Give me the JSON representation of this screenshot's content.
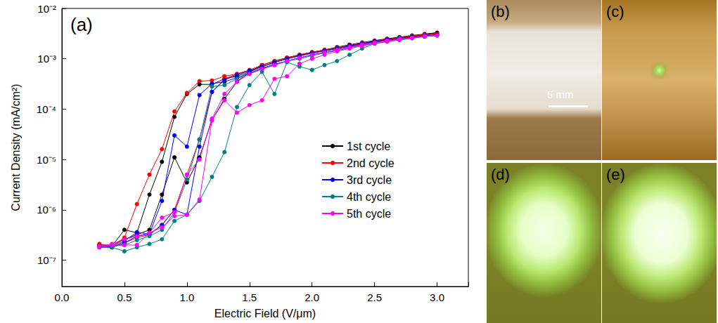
{
  "chart_data": {
    "type": "line",
    "x_label": "Electric Field (V/μm)",
    "y_label": "Current Density (mA/cm²)",
    "annotations": [
      {
        "text": "(a)"
      }
    ],
    "log": "y",
    "grid": false,
    "legend": "right",
    "marker": "circle",
    "line_style": "solid",
    "xlim": [
      0,
      3.25
    ],
    "ylim": [
      3e-08,
      0.01
    ],
    "xticks": [
      {
        "value": 0,
        "label": "0.0"
      },
      {
        "value": 0.5,
        "label": "0.5"
      },
      {
        "value": 1,
        "label": "1.0"
      },
      {
        "value": 1.5,
        "label": "1.5"
      },
      {
        "value": 2,
        "label": "2.0"
      },
      {
        "value": 2.5,
        "label": "2.5"
      },
      {
        "value": 3,
        "label": "3.0"
      }
    ],
    "yticks": [
      {
        "value": 1e-07,
        "label": "10⁻⁷"
      },
      {
        "value": 1e-06,
        "label": "10⁻⁶"
      },
      {
        "value": 1e-05,
        "label": "10⁻⁵"
      },
      {
        "value": 0.0001,
        "label": "10⁻⁴"
      },
      {
        "value": 0.001,
        "label": "10⁻³"
      },
      {
        "value": 0.01,
        "label": "10⁻²"
      }
    ],
    "x": [
      0.3,
      0.4,
      0.5,
      0.6,
      0.7,
      0.8,
      0.9,
      1.0,
      1.1,
      1.2,
      1.3,
      1.4,
      1.5,
      1.6,
      1.7,
      1.8,
      1.9,
      2.0,
      2.1,
      2.2,
      2.3,
      2.4,
      2.5,
      2.6,
      2.7,
      2.8,
      2.9,
      3.0,
      2.9,
      2.8,
      2.7,
      2.6,
      2.5,
      2.4,
      2.3,
      2.2,
      2.1,
      2.0,
      1.9,
      1.8,
      1.7,
      1.6,
      1.5,
      1.4,
      1.3,
      1.2,
      1.1,
      1.0,
      0.9,
      0.8,
      0.7,
      0.6,
      0.5,
      0.4,
      0.3
    ],
    "series": [
      {
        "name": "1st cycle",
        "color": "#000000",
        "values": [
          2e-07,
          1.9e-07,
          2.6e-07,
          3.2e-07,
          4e-07,
          2e-06,
          1.1e-05,
          3.5e-06,
          1.1e-05,
          6e-05,
          0.00016,
          0.00035,
          0.00055,
          0.00075,
          0.0009,
          0.00105,
          0.0012,
          0.00135,
          0.0015,
          0.0017,
          0.0019,
          0.0021,
          0.0023,
          0.0025,
          0.0027,
          0.0029,
          0.0031,
          0.0033,
          0.003,
          0.0028,
          0.0026,
          0.0024,
          0.0022,
          0.002,
          0.0018,
          0.0016,
          0.00145,
          0.0013,
          0.00115,
          0.001,
          0.00085,
          0.0007,
          0.00055,
          0.00045,
          0.0004,
          0.00031,
          0.00031,
          0.0002,
          7e-05,
          9e-06,
          2e-06,
          3.5e-07,
          4e-07,
          1.9e-07,
          2e-07
        ]
      },
      {
        "name": "2nd cycle",
        "color": "#ff0000",
        "values": [
          2e-07,
          1.8e-07,
          2.2e-07,
          2.8e-07,
          3.2e-07,
          5e-07,
          1e-06,
          5e-06,
          2.5e-05,
          0.00022,
          0.0004,
          0.0005,
          0.0006,
          0.00075,
          0.0009,
          0.00105,
          0.0012,
          0.00135,
          0.0015,
          0.00165,
          0.00185,
          0.00205,
          0.00225,
          0.00245,
          0.0026,
          0.0028,
          0.003,
          0.0031,
          0.00295,
          0.00275,
          0.00255,
          0.00235,
          0.00215,
          0.00195,
          0.00175,
          0.0016,
          0.00145,
          0.0013,
          0.00115,
          0.001,
          0.00085,
          0.0007,
          0.00058,
          0.0005,
          0.00045,
          0.00037,
          0.00036,
          0.00021,
          9e-05,
          1.6e-05,
          5e-06,
          1.3e-06,
          2.8e-07,
          1.9e-07,
          2.1e-07
        ]
      },
      {
        "name": "3rd cycle",
        "color": "#0000ff",
        "values": [
          1.8e-07,
          1.8e-07,
          2.2e-07,
          3e-07,
          3.3e-07,
          5e-07,
          1e-06,
          8e-07,
          1.8e-05,
          0.00022,
          0.00038,
          0.00048,
          0.00058,
          0.0007,
          0.00085,
          0.001,
          0.00115,
          0.0013,
          0.00145,
          0.0016,
          0.0018,
          0.002,
          0.0022,
          0.0024,
          0.00255,
          0.0027,
          0.00285,
          0.003,
          0.0028,
          0.00265,
          0.0025,
          0.0023,
          0.0021,
          0.0019,
          0.0017,
          0.0015,
          0.00135,
          0.0012,
          0.00105,
          0.0009,
          0.00078,
          0.00065,
          0.00052,
          0.00042,
          0.00035,
          0.00032,
          0.00019,
          1.8e-05,
          3e-05,
          1.5e-06,
          3.3e-07,
          3.6e-07,
          2.4e-07,
          1.8e-07,
          1.9e-07
        ]
      },
      {
        "name": "4th cycle",
        "color": "#008080",
        "values": [
          1.9e-07,
          1.8e-07,
          1.5e-07,
          1.8e-07,
          2.1e-07,
          2.6e-07,
          6e-07,
          8e-07,
          1.5e-06,
          4.5e-06,
          1.4e-05,
          0.00011,
          0.0003,
          0.00055,
          0.0002,
          0.00085,
          0.0007,
          0.0006,
          0.00075,
          0.0009,
          0.0012,
          0.0016,
          0.002,
          0.0022,
          0.0025,
          0.0026,
          0.0028,
          0.0029,
          0.00275,
          0.00255,
          0.00235,
          0.0022,
          0.002,
          0.00185,
          0.00165,
          0.00145,
          0.0013,
          0.00115,
          0.001,
          0.0009,
          0.00075,
          0.00062,
          0.0005,
          0.0004,
          0.0003,
          0.00028,
          2.5e-05,
          4e-06,
          9e-07,
          4e-07,
          3e-07,
          2.5e-07,
          2e-07,
          1.9e-07,
          1.8e-07
        ]
      },
      {
        "name": "5th cycle",
        "color": "#ff00ff",
        "values": [
          1.8e-07,
          2e-07,
          2e-07,
          2e-07,
          3.5e-07,
          4.5e-07,
          7.5e-07,
          8e-07,
          1.6e-06,
          6e-05,
          0.00015,
          8.5e-05,
          0.00012,
          0.00015,
          0.0004,
          0.00045,
          0.0008,
          0.001,
          0.0012,
          0.0014,
          0.0016,
          0.0018,
          0.002,
          0.0022,
          0.0024,
          0.0026,
          0.0028,
          0.0029,
          0.0028,
          0.0026,
          0.00245,
          0.0023,
          0.0021,
          0.0019,
          0.0017,
          0.0015,
          0.00135,
          0.0012,
          0.00105,
          0.0009,
          0.00075,
          0.00063,
          0.0005,
          0.00035,
          0.0002,
          6.5e-05,
          1e-05,
          5e-06,
          9e-07,
          7e-07,
          3.5e-07,
          3e-07,
          2.6e-07,
          2.1e-07,
          1.9e-07
        ]
      }
    ]
  },
  "panels": [
    {
      "label": "(b)",
      "scale_bar": "5 mm"
    },
    {
      "label": "(c)"
    },
    {
      "label": "(d)"
    },
    {
      "label": "(e)"
    }
  ]
}
